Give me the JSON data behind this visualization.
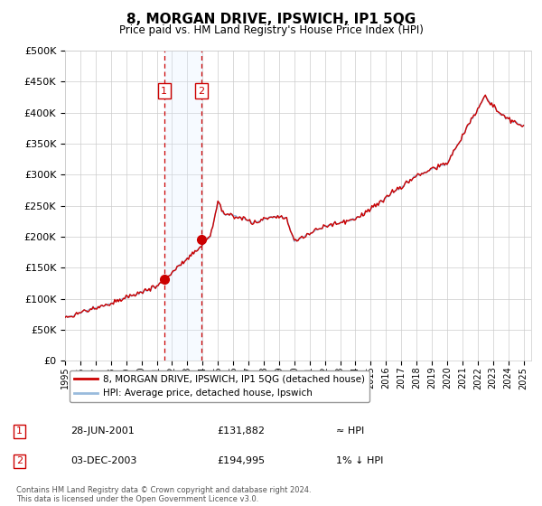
{
  "title": "8, MORGAN DRIVE, IPSWICH, IP1 5QG",
  "subtitle": "Price paid vs. HM Land Registry's House Price Index (HPI)",
  "ylabel_ticks": [
    "£0",
    "£50K",
    "£100K",
    "£150K",
    "£200K",
    "£250K",
    "£300K",
    "£350K",
    "£400K",
    "£450K",
    "£500K"
  ],
  "ytick_values": [
    0,
    50000,
    100000,
    150000,
    200000,
    250000,
    300000,
    350000,
    400000,
    450000,
    500000
  ],
  "xlim_start": 1995.0,
  "xlim_end": 2025.5,
  "ylim_min": 0,
  "ylim_max": 500000,
  "hpi_color": "#99bbdd",
  "price_color": "#cc0000",
  "transaction1_date": 2001.49,
  "transaction1_price": 131882,
  "transaction2_date": 2003.92,
  "transaction2_price": 194995,
  "shade_color": "#ddeeff",
  "legend_label1": "8, MORGAN DRIVE, IPSWICH, IP1 5QG (detached house)",
  "legend_label2": "HPI: Average price, detached house, Ipswich",
  "note1_date": "28-JUN-2001",
  "note1_price": "£131,882",
  "note1_rel": "≈ HPI",
  "note2_date": "03-DEC-2003",
  "note2_price": "£194,995",
  "note2_rel": "1% ↓ HPI",
  "footnote": "Contains HM Land Registry data © Crown copyright and database right 2024.\nThis data is licensed under the Open Government Licence v3.0.",
  "background_color": "#ffffff",
  "grid_color": "#cccccc"
}
